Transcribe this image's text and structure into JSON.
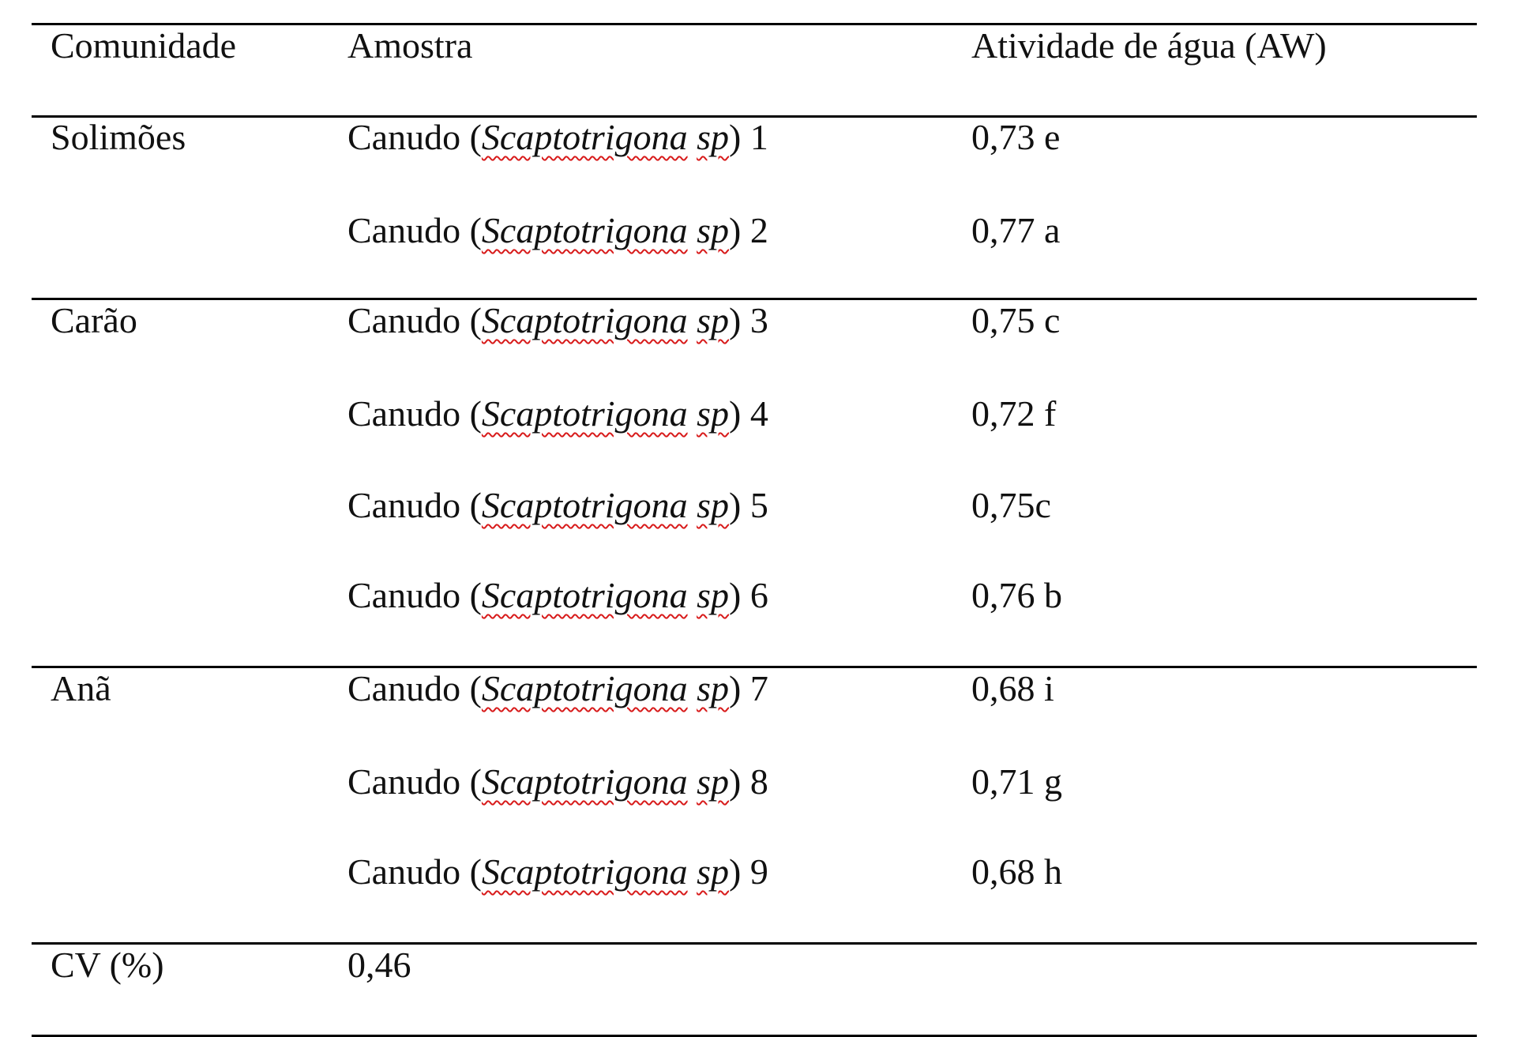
{
  "table": {
    "headers": {
      "community": "Comunidade",
      "sample": "Amostra",
      "water_activity": "Atividade de água (AW)"
    },
    "groups": [
      {
        "community": "Solimões",
        "rows": [
          {
            "prefix": "Canudo (",
            "species": "Scaptotrigona",
            "species2": "sp",
            "suffix": ") 1",
            "aw": "0,73 e"
          },
          {
            "prefix": "Canudo (",
            "species": "Scaptotrigona",
            "species2": "sp",
            "suffix": ") 2",
            "aw": "0,77 a"
          }
        ]
      },
      {
        "community": "Carão",
        "rows": [
          {
            "prefix": "Canudo (",
            "species": "Scaptotrigona",
            "species2": "sp",
            "suffix": ") 3",
            "aw": "0,75 c"
          },
          {
            "prefix": "Canudo (",
            "species": "Scaptotrigona",
            "species2": "sp",
            "suffix": ") 4",
            "aw": "0,72 f"
          },
          {
            "prefix": "Canudo (",
            "species": "Scaptotrigona",
            "species2": "sp",
            "suffix": ") 5",
            "aw": "0,75c"
          },
          {
            "prefix": "Canudo (",
            "species": "Scaptotrigona",
            "species2": "sp",
            "suffix": ") 6",
            "aw": "0,76 b"
          }
        ]
      },
      {
        "community": "Anã",
        "rows": [
          {
            "prefix": "Canudo (",
            "species": "Scaptotrigona",
            "species2": "sp",
            "suffix": ") 7",
            "aw": "0,68 i"
          },
          {
            "prefix": "Canudo (",
            "species": "Scaptotrigona",
            "species2": "sp",
            "suffix": ") 8",
            "aw": "0,71 g"
          },
          {
            "prefix": "Canudo (",
            "species": "Scaptotrigona",
            "species2": "sp",
            "suffix": ") 9",
            "aw": "0,68 h"
          }
        ]
      }
    ],
    "cv": {
      "label": "CV (%)",
      "value": "0,46"
    }
  }
}
